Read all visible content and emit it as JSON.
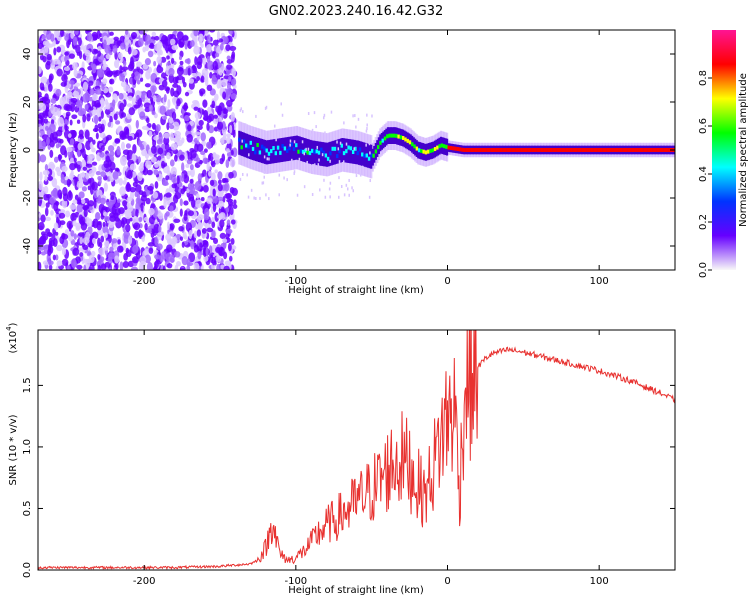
{
  "title": "GN02.2023.240.16.42.G32",
  "colors": {
    "trace": "#e8312f",
    "axis": "#000000",
    "background": "#ffffff"
  },
  "chart_data": [
    {
      "type": "heatmap",
      "xlabel": "Height of straight line (km)",
      "ylabel": "Frequency (Hz)",
      "xlim": [
        -270,
        150
      ],
      "ylim": [
        -50,
        50
      ],
      "xticks": [
        -200,
        -100,
        0,
        100
      ],
      "yticks": [
        -40,
        -20,
        0,
        20,
        40
      ],
      "noise_region_x": [
        -270,
        -140
      ],
      "ridge": {
        "x": [
          -138,
          -130,
          -120,
          -110,
          -100,
          -90,
          -80,
          -70,
          -60,
          -50,
          -45,
          -40,
          -35,
          -30,
          -25,
          -20,
          -15,
          -10,
          -5,
          0,
          10,
          30,
          60,
          100,
          150
        ],
        "y": [
          3,
          1,
          -1,
          0,
          1,
          -1,
          -2,
          0,
          -1,
          -3,
          3,
          6,
          6,
          5,
          3,
          0,
          -1,
          0,
          2,
          1,
          0,
          0,
          0,
          0,
          0
        ]
      },
      "colorbar": {
        "label": "Normalized spectral amplitude",
        "range": [
          0,
          1
        ],
        "ticks": [
          0.0,
          0.2,
          0.4,
          0.6,
          0.8
        ],
        "colors": [
          "#f8f8f8",
          "#6600ff",
          "#0033ff",
          "#00ffff",
          "#00ff00",
          "#ffff00",
          "#ff0000",
          "#ff1493"
        ]
      }
    },
    {
      "type": "line",
      "xlabel": "Height of straight line (km)",
      "ylabel": "SNR (10 * v/v)",
      "scale_label": "(x10",
      "scale_exp": "4",
      "xlim": [
        -270,
        150
      ],
      "ylim": [
        0,
        1.95
      ],
      "xticks": [
        -200,
        -100,
        0,
        100
      ],
      "yticks": [
        0.0,
        0.5,
        1.0,
        1.5
      ],
      "series": [
        {
          "x": [
            -270,
            -240,
            -210,
            -180,
            -150,
            -130,
            -125,
            -120,
            -117,
            -115,
            -113,
            -110,
            -105,
            -100,
            -95,
            -90,
            -85,
            -80,
            -75,
            -70,
            -65,
            -60,
            -55,
            -50,
            -45,
            -40,
            -35,
            -30,
            -25,
            -20,
            -15,
            -10,
            -5,
            0,
            5,
            8,
            10,
            12,
            15,
            20,
            25,
            30,
            40,
            50,
            60,
            70,
            80,
            90,
            100,
            110,
            120,
            130,
            140,
            150
          ],
          "y": [
            0.02,
            0.02,
            0.02,
            0.02,
            0.03,
            0.05,
            0.08,
            0.18,
            0.3,
            0.45,
            0.25,
            0.12,
            0.08,
            0.1,
            0.15,
            0.22,
            0.3,
            0.36,
            0.4,
            0.45,
            0.5,
            0.55,
            0.6,
            0.65,
            0.72,
            0.8,
            0.88,
            0.9,
            0.85,
            0.7,
            0.6,
            0.8,
            1.05,
            1.25,
            1.3,
            0.6,
            1.2,
            1.5,
            1.55,
            1.65,
            1.72,
            1.76,
            1.79,
            1.77,
            1.74,
            1.71,
            1.68,
            1.65,
            1.62,
            1.58,
            1.54,
            1.49,
            1.44,
            1.38
          ]
        }
      ]
    }
  ]
}
